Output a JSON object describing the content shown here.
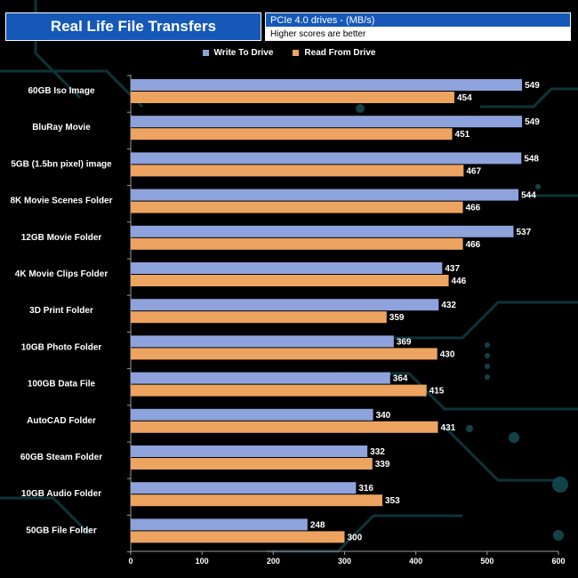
{
  "header": {
    "title": "Real Life File Transfers",
    "subtitle": "PCIe 4.0 drives - (MB/s)",
    "note": "Higher scores are better"
  },
  "colors": {
    "write": "#8ea2dc",
    "read": "#eda460",
    "background": "#000000",
    "header_blue": "#1558b8"
  },
  "chart_data": {
    "type": "bar",
    "orientation": "horizontal",
    "title": "Real Life File Transfers",
    "subtitle": "PCIe 4.0 drives - (MB/s)",
    "xlim": [
      0,
      600
    ],
    "ticks": [
      "0",
      "100",
      "200",
      "300",
      "400",
      "500",
      "600"
    ],
    "tick_values": [
      0,
      100,
      200,
      300,
      400,
      500,
      600
    ],
    "categories": [
      "60GB Iso Image",
      "BluRay Movie",
      "5GB (1.5bn pixel) image",
      "8K Movie Scenes Folder",
      "12GB Movie Folder",
      "4K Movie Clips Folder",
      "3D Print Folder",
      "10GB Photo Folder",
      "100GB Data File",
      "AutoCAD Folder",
      "60GB Steam Folder",
      "10GB Audio Folder",
      "50GB File Folder"
    ],
    "series": [
      {
        "name": "Write To  Drive",
        "values": [
          549,
          549,
          548,
          544,
          537,
          437,
          432,
          369,
          364,
          340,
          332,
          316,
          248
        ]
      },
      {
        "name": "Read From  Drive",
        "values": [
          454,
          451,
          467,
          466,
          466,
          446,
          359,
          430,
          415,
          431,
          339,
          353,
          300
        ]
      }
    ],
    "legend_position": "top-center",
    "grid": false
  }
}
